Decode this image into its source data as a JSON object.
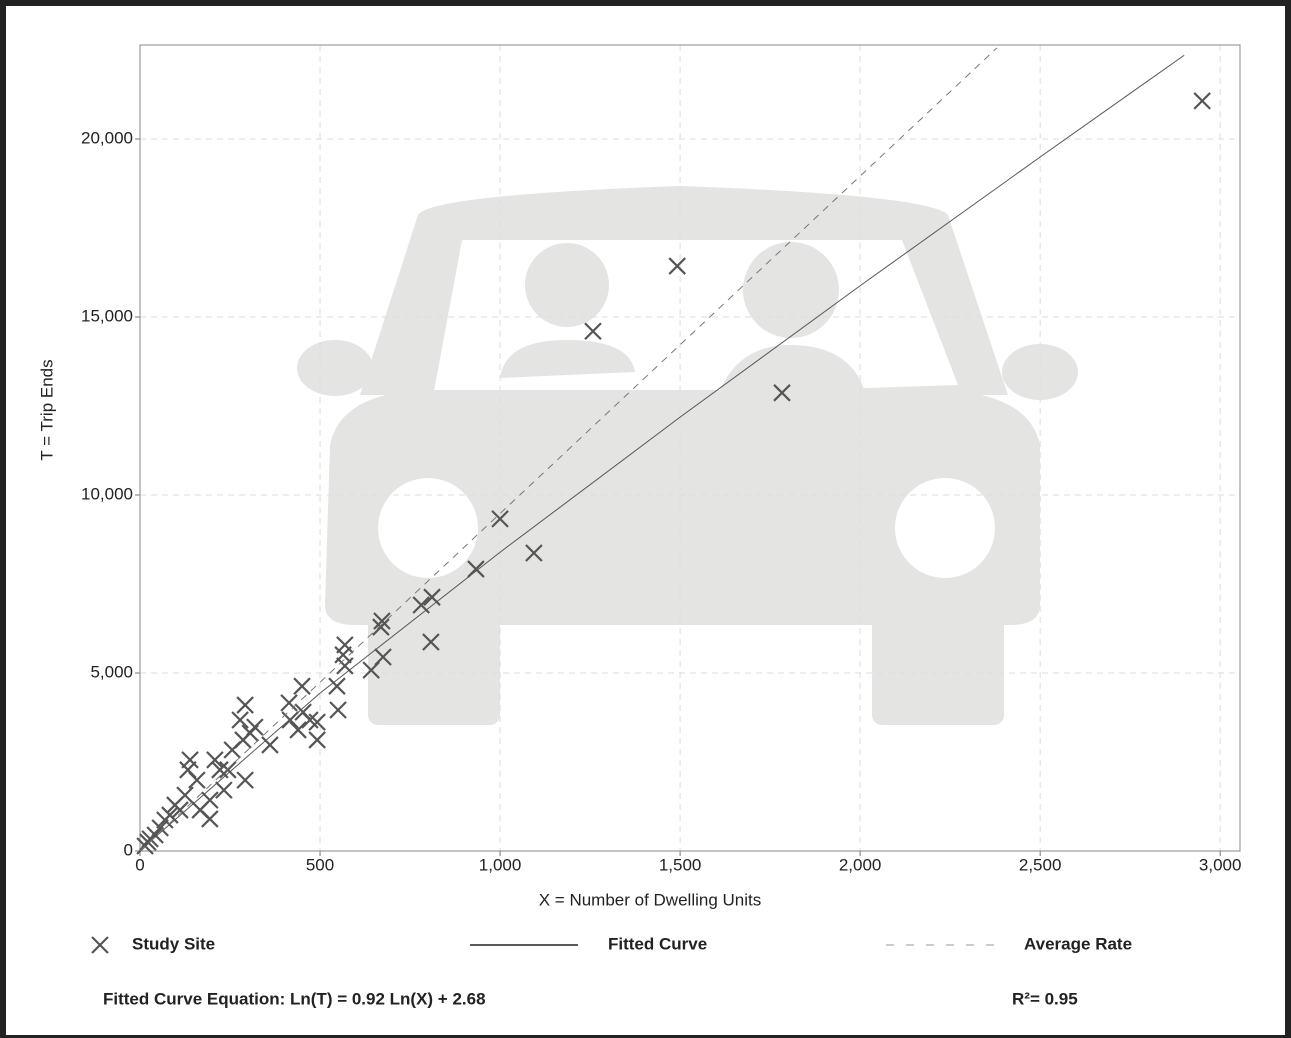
{
  "chart_data": {
    "type": "scatter",
    "x_label": "X = Number of Dwelling Units",
    "y_label": "T = Trip Ends",
    "xlim": [
      0,
      3055
    ],
    "ylim": [
      0,
      22640
    ],
    "xticks": [
      0,
      500,
      {
        "value": 1000,
        "label": "1,000"
      },
      {
        "value": 1500,
        "label": "1,500"
      },
      {
        "value": 2000,
        "label": "2,000"
      },
      {
        "value": 2500,
        "label": "2,500"
      },
      {
        "value": 3000,
        "label": "3,000"
      }
    ],
    "yticks": [
      0,
      {
        "value": 5000,
        "label": "5,000"
      },
      {
        "value": 10000,
        "label": "10,000"
      },
      {
        "value": 15000,
        "label": "15,000"
      },
      {
        "value": 20000,
        "label": "20,000"
      }
    ],
    "grid": true,
    "legend": "bottom",
    "series": [
      {
        "name": "Study Site",
        "type": "scatter",
        "color": "#555555",
        "x": [
          2950,
          1492,
          1258,
          1783,
          1000,
          1094,
          933,
          811,
          781,
          808,
          672,
          669,
          675,
          642,
          569,
          564,
          569,
          547,
          550,
          450,
          453,
          417,
          414,
          439,
          472,
          492,
          492,
          292,
          278,
          306,
          286,
          292,
          256,
          244,
          233,
          208,
          194,
          194,
          158,
          139,
          133,
          125,
          97,
          69,
          56,
          42,
          22,
          14,
          28,
          167,
          222,
          319,
          361,
          111,
          83
        ],
        "values": [
          21070,
          16430,
          14600,
          12870,
          9330,
          8370,
          7920,
          7130,
          6910,
          5870,
          6460,
          6290,
          5450,
          5080,
          5790,
          5510,
          5200,
          4630,
          3960,
          4630,
          3900,
          3680,
          4160,
          3400,
          3680,
          3120,
          3620,
          4100,
          3680,
          3310,
          3120,
          1990,
          2840,
          2280,
          1710,
          2560,
          1430,
          900,
          1990,
          2560,
          2280,
          1570,
          1290,
          870,
          650,
          450,
          250,
          140,
          340,
          1150,
          2280,
          3480,
          2980,
          1150,
          1010
        ]
      },
      {
        "name": "Fitted Curve",
        "type": "line",
        "color": "#555555",
        "dash": false,
        "x": [
          5,
          500,
          1000,
          1500,
          2000,
          2500,
          2900
        ],
        "values": [
          64,
          4435,
          8392,
          12187,
          15877,
          19494,
          22352
        ]
      },
      {
        "name": "Average Rate",
        "type": "line",
        "color": "#777777",
        "dash": true,
        "x": [
          0,
          2380
        ],
        "values": [
          0,
          22560
        ]
      }
    ],
    "annotations": [
      "Fitted Curve Equation: Ln(T) = 0.92 Ln(X) + 2.68",
      "R²= 0.95"
    ]
  }
}
